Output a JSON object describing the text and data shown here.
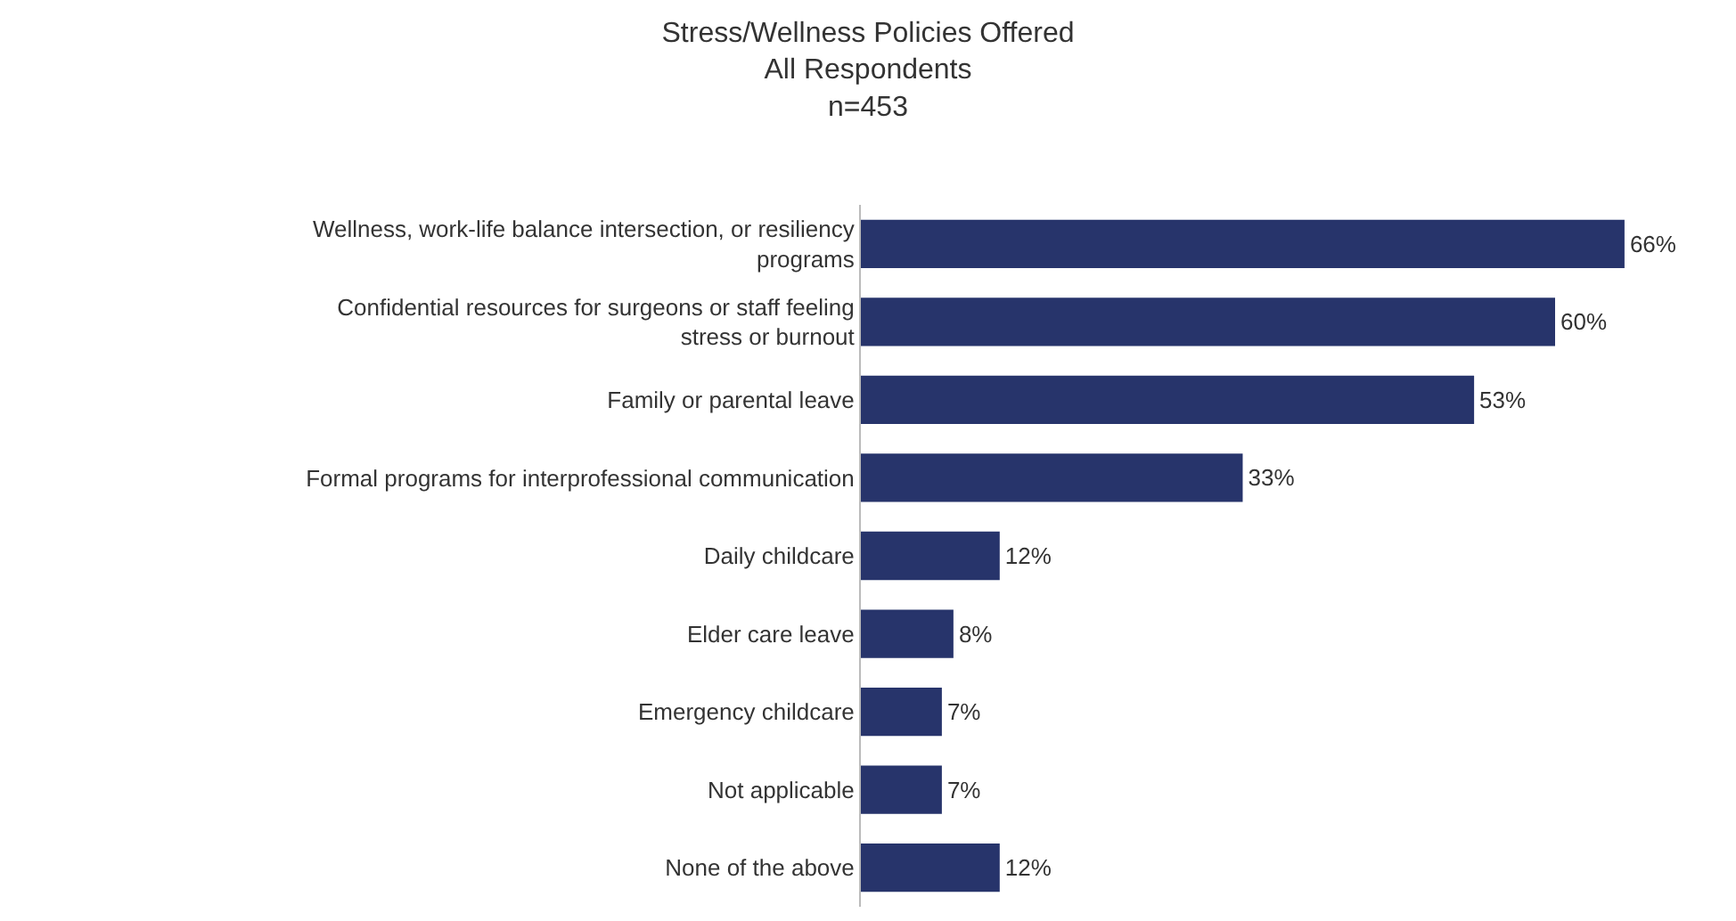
{
  "chart_data": {
    "type": "bar",
    "orientation": "horizontal",
    "title": "Stress/Wellness Policies Offered",
    "subtitle": "All Respondents",
    "annotations": [
      "n=453"
    ],
    "categories": [
      "Wellness, work-life balance intersection, or resiliency programs",
      "Confidential resources for surgeons or staff feeling stress or burnout",
      "Family or parental leave",
      "Formal programs for interprofessional communication",
      "Daily childcare",
      "Elder care leave",
      "Emergency childcare",
      "Not applicable",
      "None of the above"
    ],
    "values": [
      66,
      60,
      53,
      33,
      12,
      8,
      7,
      7,
      12
    ],
    "value_labels": [
      "66%",
      "60%",
      "53%",
      "33%",
      "12%",
      "8%",
      "7%",
      "7%",
      "12%"
    ],
    "color": "#27346b"
  }
}
